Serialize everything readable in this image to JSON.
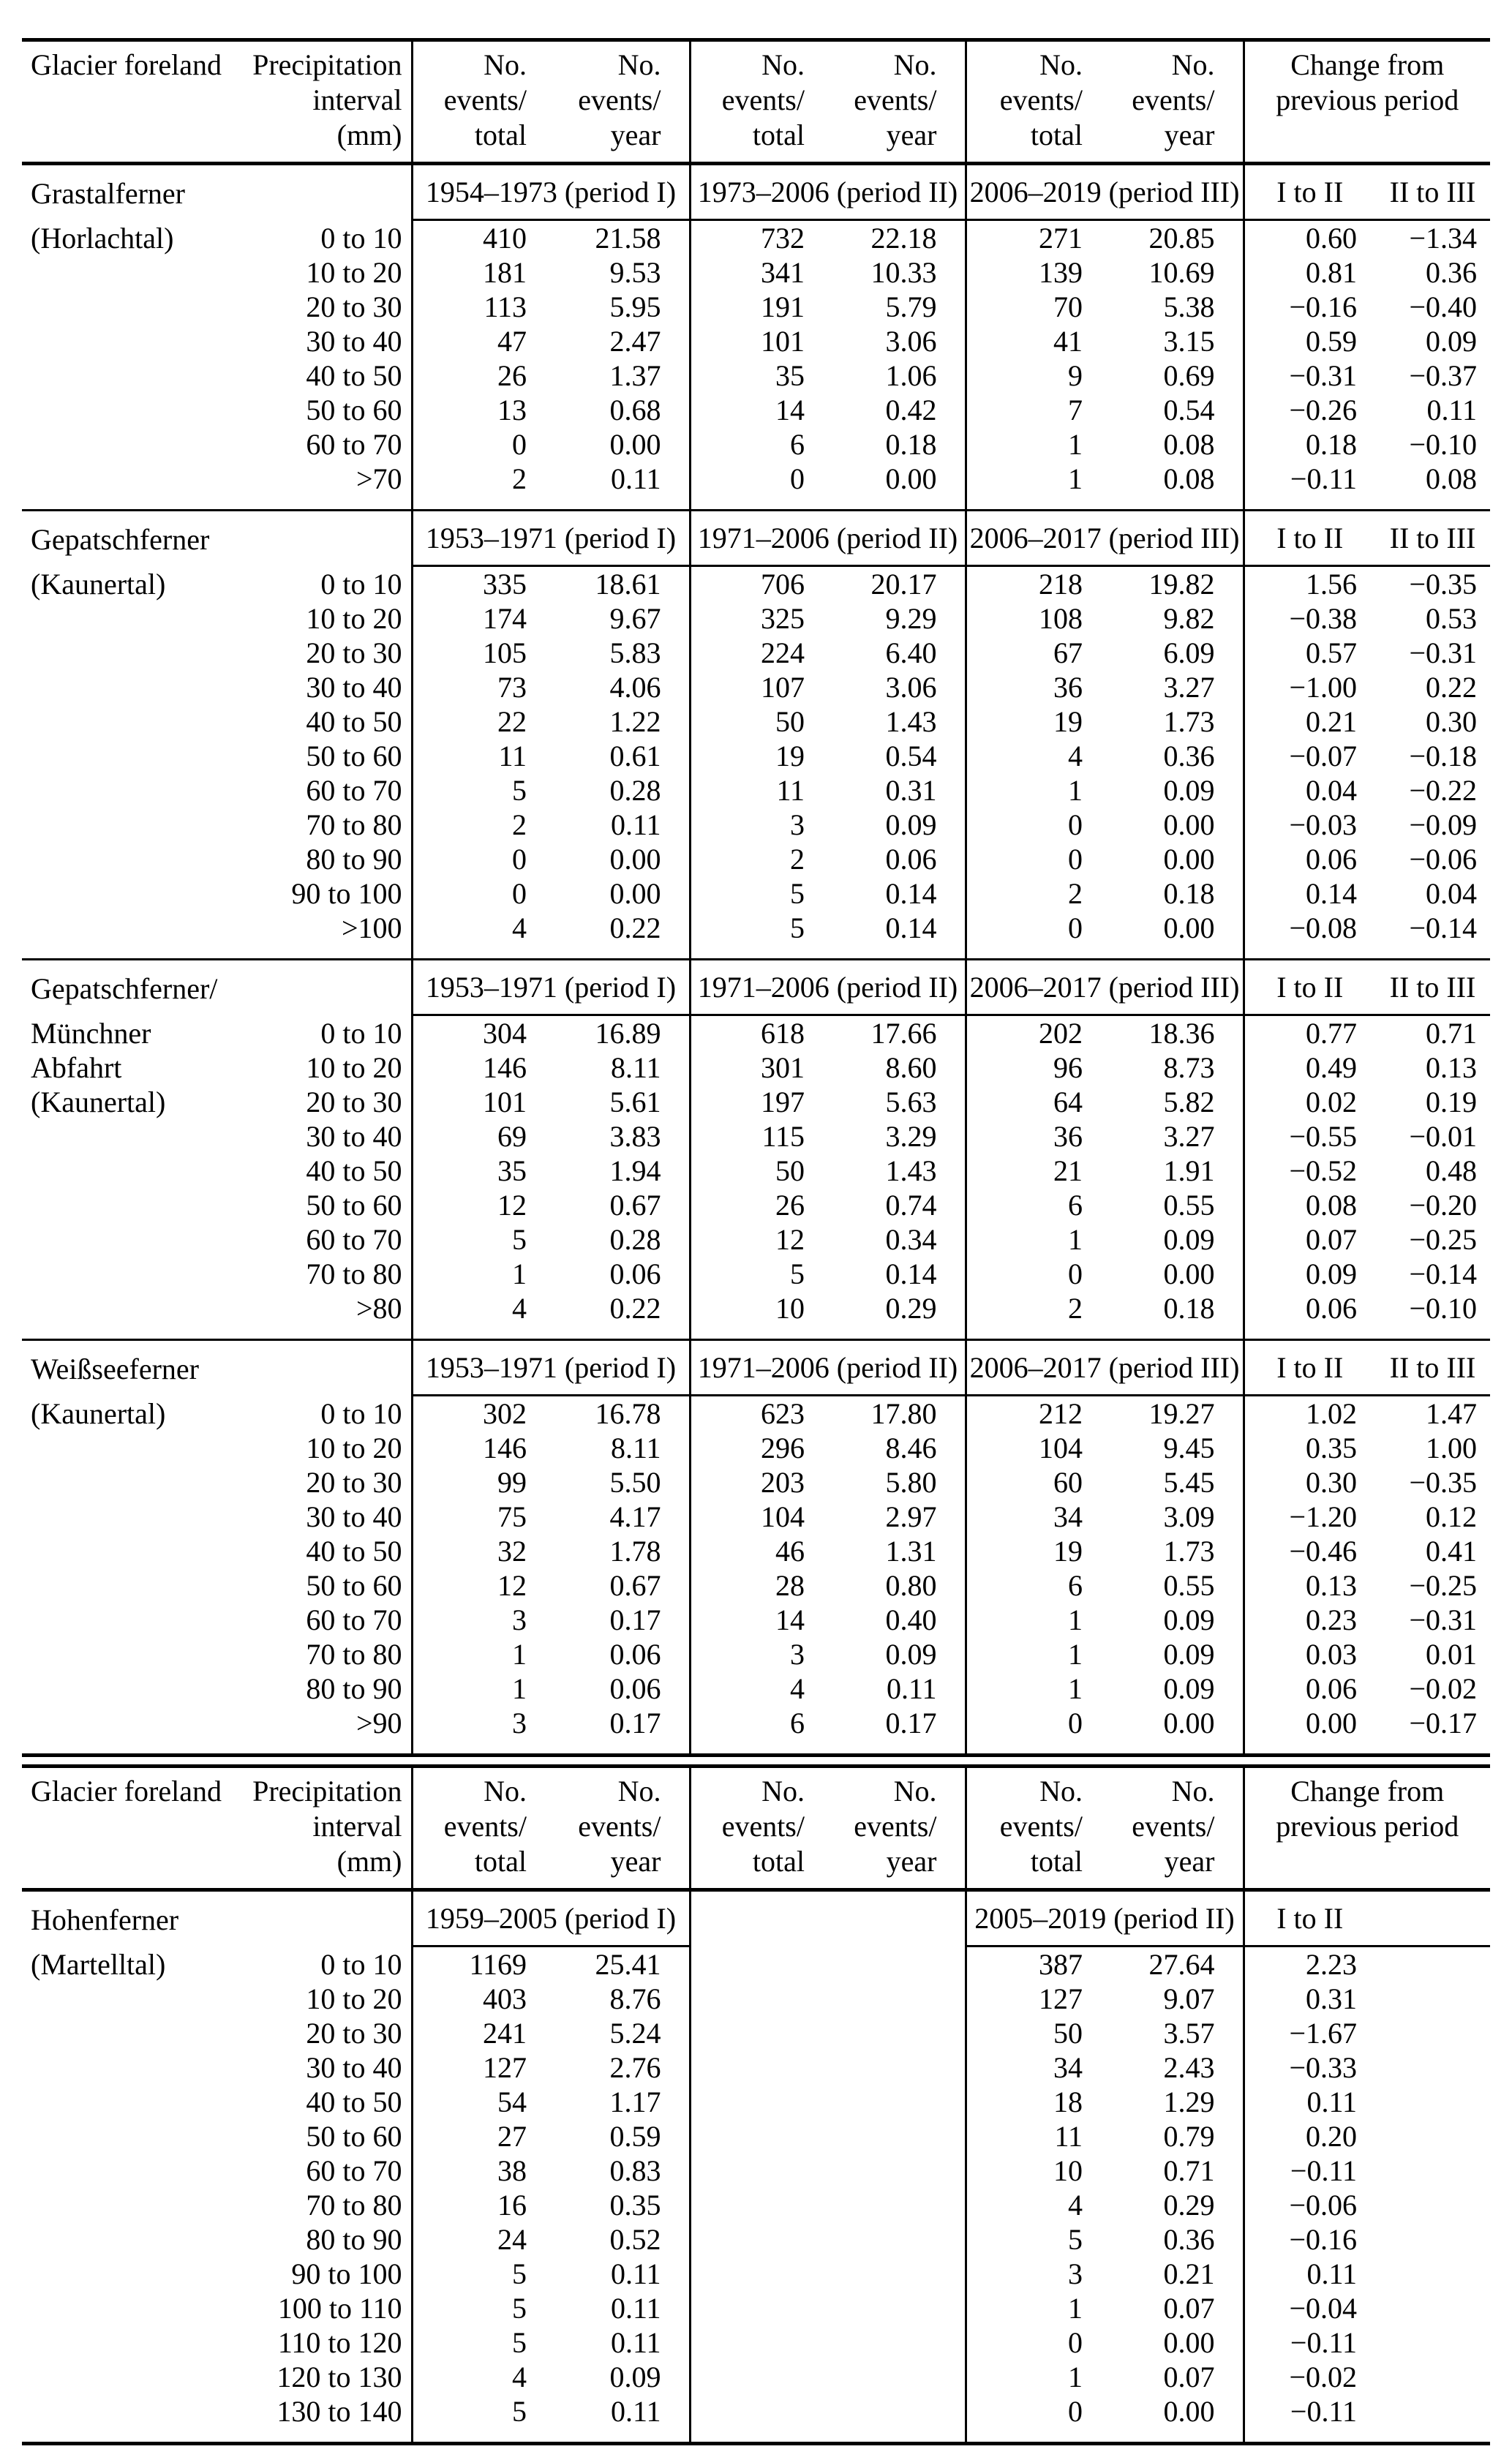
{
  "page": {
    "background": "#ffffff",
    "text_color": "#000000"
  },
  "column_headers": {
    "glacier": "Glacier foreland",
    "precipitation_lines": [
      "Precipitation",
      "interval",
      "(mm)"
    ],
    "events_total_lines": [
      "No.",
      "events/",
      "total"
    ],
    "events_year_lines": [
      "No.",
      "events/",
      "year"
    ],
    "change_lines": [
      "Change from",
      "previous period"
    ]
  },
  "tables": [
    {
      "id": "upper-table",
      "sections": [
        {
          "name": "Grastalferner",
          "sub_labels": [
            "(Horlachtal)"
          ],
          "period_labels": [
            "1954–1973 (period I)",
            "1973–2006 (period II)",
            "2006–2019 (period III)"
          ],
          "change_labels": [
            "I to II",
            "II to III"
          ],
          "rows": [
            {
              "interval": "0 to 10",
              "values": [
                "410",
                "21.58",
                "732",
                "22.18",
                "271",
                "20.85",
                "0.60",
                "−1.34"
              ]
            },
            {
              "interval": "10 to 20",
              "values": [
                "181",
                "9.53",
                "341",
                "10.33",
                "139",
                "10.69",
                "0.81",
                "0.36"
              ]
            },
            {
              "interval": "20 to 30",
              "values": [
                "113",
                "5.95",
                "191",
                "5.79",
                "70",
                "5.38",
                "−0.16",
                "−0.40"
              ]
            },
            {
              "interval": "30 to 40",
              "values": [
                "47",
                "2.47",
                "101",
                "3.06",
                "41",
                "3.15",
                "0.59",
                "0.09"
              ]
            },
            {
              "interval": "40 to 50",
              "values": [
                "26",
                "1.37",
                "35",
                "1.06",
                "9",
                "0.69",
                "−0.31",
                "−0.37"
              ]
            },
            {
              "interval": "50 to 60",
              "values": [
                "13",
                "0.68",
                "14",
                "0.42",
                "7",
                "0.54",
                "−0.26",
                "0.11"
              ]
            },
            {
              "interval": "60 to 70",
              "values": [
                "0",
                "0.00",
                "6",
                "0.18",
                "1",
                "0.08",
                "0.18",
                "−0.10"
              ]
            },
            {
              "interval": ">70",
              "values": [
                "2",
                "0.11",
                "0",
                "0.00",
                "1",
                "0.08",
                "−0.11",
                "0.08"
              ]
            }
          ]
        },
        {
          "name": "Gepatschferner",
          "sub_labels": [
            "(Kaunertal)"
          ],
          "period_labels": [
            "1953–1971 (period I)",
            "1971–2006 (period II)",
            "2006–2017 (period III)"
          ],
          "change_labels": [
            "I to II",
            "II to III"
          ],
          "rows": [
            {
              "interval": "0 to 10",
              "values": [
                "335",
                "18.61",
                "706",
                "20.17",
                "218",
                "19.82",
                "1.56",
                "−0.35"
              ]
            },
            {
              "interval": "10 to 20",
              "values": [
                "174",
                "9.67",
                "325",
                "9.29",
                "108",
                "9.82",
                "−0.38",
                "0.53"
              ]
            },
            {
              "interval": "20 to 30",
              "values": [
                "105",
                "5.83",
                "224",
                "6.40",
                "67",
                "6.09",
                "0.57",
                "−0.31"
              ]
            },
            {
              "interval": "30 to 40",
              "values": [
                "73",
                "4.06",
                "107",
                "3.06",
                "36",
                "3.27",
                "−1.00",
                "0.22"
              ]
            },
            {
              "interval": "40 to 50",
              "values": [
                "22",
                "1.22",
                "50",
                "1.43",
                "19",
                "1.73",
                "0.21",
                "0.30"
              ]
            },
            {
              "interval": "50 to 60",
              "values": [
                "11",
                "0.61",
                "19",
                "0.54",
                "4",
                "0.36",
                "−0.07",
                "−0.18"
              ]
            },
            {
              "interval": "60 to 70",
              "values": [
                "5",
                "0.28",
                "11",
                "0.31",
                "1",
                "0.09",
                "0.04",
                "−0.22"
              ]
            },
            {
              "interval": "70 to 80",
              "values": [
                "2",
                "0.11",
                "3",
                "0.09",
                "0",
                "0.00",
                "−0.03",
                "−0.09"
              ]
            },
            {
              "interval": "80 to 90",
              "values": [
                "0",
                "0.00",
                "2",
                "0.06",
                "0",
                "0.00",
                "0.06",
                "−0.06"
              ]
            },
            {
              "interval": "90 to 100",
              "values": [
                "0",
                "0.00",
                "5",
                "0.14",
                "2",
                "0.18",
                "0.14",
                "0.04"
              ]
            },
            {
              "interval": ">100",
              "values": [
                "4",
                "0.22",
                "5",
                "0.14",
                "0",
                "0.00",
                "−0.08",
                "−0.14"
              ]
            }
          ]
        },
        {
          "name": "Gepatschferner/",
          "sub_labels": [
            "Münchner",
            "Abfahrt",
            "(Kaunertal)"
          ],
          "period_labels": [
            "1953–1971 (period I)",
            "1971–2006 (period II)",
            "2006–2017 (period III)"
          ],
          "change_labels": [
            "I to II",
            "II to III"
          ],
          "rows": [
            {
              "interval": "0 to 10",
              "values": [
                "304",
                "16.89",
                "618",
                "17.66",
                "202",
                "18.36",
                "0.77",
                "0.71"
              ]
            },
            {
              "interval": "10 to 20",
              "values": [
                "146",
                "8.11",
                "301",
                "8.60",
                "96",
                "8.73",
                "0.49",
                "0.13"
              ]
            },
            {
              "interval": "20 to 30",
              "values": [
                "101",
                "5.61",
                "197",
                "5.63",
                "64",
                "5.82",
                "0.02",
                "0.19"
              ]
            },
            {
              "interval": "30 to 40",
              "values": [
                "69",
                "3.83",
                "115",
                "3.29",
                "36",
                "3.27",
                "−0.55",
                "−0.01"
              ]
            },
            {
              "interval": "40 to 50",
              "values": [
                "35",
                "1.94",
                "50",
                "1.43",
                "21",
                "1.91",
                "−0.52",
                "0.48"
              ]
            },
            {
              "interval": "50 to 60",
              "values": [
                "12",
                "0.67",
                "26",
                "0.74",
                "6",
                "0.55",
                "0.08",
                "−0.20"
              ]
            },
            {
              "interval": "60 to 70",
              "values": [
                "5",
                "0.28",
                "12",
                "0.34",
                "1",
                "0.09",
                "0.07",
                "−0.25"
              ]
            },
            {
              "interval": "70 to 80",
              "values": [
                "1",
                "0.06",
                "5",
                "0.14",
                "0",
                "0.00",
                "0.09",
                "−0.14"
              ]
            },
            {
              "interval": ">80",
              "values": [
                "4",
                "0.22",
                "10",
                "0.29",
                "2",
                "0.18",
                "0.06",
                "−0.10"
              ]
            }
          ]
        },
        {
          "name": "Weißseeferner",
          "sub_labels": [
            "(Kaunertal)"
          ],
          "period_labels": [
            "1953–1971 (period I)",
            "1971–2006 (period II)",
            "2006–2017 (period III)"
          ],
          "change_labels": [
            "I to II",
            "II to III"
          ],
          "rows": [
            {
              "interval": "0 to 10",
              "values": [
                "302",
                "16.78",
                "623",
                "17.80",
                "212",
                "19.27",
                "1.02",
                "1.47"
              ]
            },
            {
              "interval": "10 to 20",
              "values": [
                "146",
                "8.11",
                "296",
                "8.46",
                "104",
                "9.45",
                "0.35",
                "1.00"
              ]
            },
            {
              "interval": "20 to 30",
              "values": [
                "99",
                "5.50",
                "203",
                "5.80",
                "60",
                "5.45",
                "0.30",
                "−0.35"
              ]
            },
            {
              "interval": "30 to 40",
              "values": [
                "75",
                "4.17",
                "104",
                "2.97",
                "34",
                "3.09",
                "−1.20",
                "0.12"
              ]
            },
            {
              "interval": "40 to 50",
              "values": [
                "32",
                "1.78",
                "46",
                "1.31",
                "19",
                "1.73",
                "−0.46",
                "0.41"
              ]
            },
            {
              "interval": "50 to 60",
              "values": [
                "12",
                "0.67",
                "28",
                "0.80",
                "6",
                "0.55",
                "0.13",
                "−0.25"
              ]
            },
            {
              "interval": "60 to 70",
              "values": [
                "3",
                "0.17",
                "14",
                "0.40",
                "1",
                "0.09",
                "0.23",
                "−0.31"
              ]
            },
            {
              "interval": "70 to 80",
              "values": [
                "1",
                "0.06",
                "3",
                "0.09",
                "1",
                "0.09",
                "0.03",
                "0.01"
              ]
            },
            {
              "interval": "80 to 90",
              "values": [
                "1",
                "0.06",
                "4",
                "0.11",
                "1",
                "0.09",
                "0.06",
                "−0.02"
              ]
            },
            {
              "interval": ">90",
              "values": [
                "3",
                "0.17",
                "6",
                "0.17",
                "0",
                "0.00",
                "0.00",
                "−0.17"
              ]
            }
          ]
        }
      ]
    },
    {
      "id": "lower-table",
      "sections": [
        {
          "name": "Hohenferner",
          "sub_labels": [
            "(Martelltal)"
          ],
          "period_labels": [
            "1959–2005 (period I)",
            "",
            "2005–2019 (period II)"
          ],
          "change_labels": [
            "I to II",
            ""
          ],
          "rows": [
            {
              "interval": "0 to 10",
              "values": [
                "1169",
                "25.41",
                "",
                "",
                "387",
                "27.64",
                "2.23",
                ""
              ]
            },
            {
              "interval": "10 to 20",
              "values": [
                "403",
                "8.76",
                "",
                "",
                "127",
                "9.07",
                "0.31",
                ""
              ]
            },
            {
              "interval": "20 to 30",
              "values": [
                "241",
                "5.24",
                "",
                "",
                "50",
                "3.57",
                "−1.67",
                ""
              ]
            },
            {
              "interval": "30 to 40",
              "values": [
                "127",
                "2.76",
                "",
                "",
                "34",
                "2.43",
                "−0.33",
                ""
              ]
            },
            {
              "interval": "40 to 50",
              "values": [
                "54",
                "1.17",
                "",
                "",
                "18",
                "1.29",
                "0.11",
                ""
              ]
            },
            {
              "interval": "50 to 60",
              "values": [
                "27",
                "0.59",
                "",
                "",
                "11",
                "0.79",
                "0.20",
                ""
              ]
            },
            {
              "interval": "60 to 70",
              "values": [
                "38",
                "0.83",
                "",
                "",
                "10",
                "0.71",
                "−0.11",
                ""
              ]
            },
            {
              "interval": "70 to 80",
              "values": [
                "16",
                "0.35",
                "",
                "",
                "4",
                "0.29",
                "−0.06",
                ""
              ]
            },
            {
              "interval": "80 to 90",
              "values": [
                "24",
                "0.52",
                "",
                "",
                "5",
                "0.36",
                "−0.16",
                ""
              ]
            },
            {
              "interval": "90 to 100",
              "values": [
                "5",
                "0.11",
                "",
                "",
                "3",
                "0.21",
                "0.11",
                ""
              ]
            },
            {
              "interval": "100 to 110",
              "values": [
                "5",
                "0.11",
                "",
                "",
                "1",
                "0.07",
                "−0.04",
                ""
              ]
            },
            {
              "interval": "110 to 120",
              "values": [
                "5",
                "0.11",
                "",
                "",
                "0",
                "0.00",
                "−0.11",
                ""
              ]
            },
            {
              "interval": "120 to 130",
              "values": [
                "4",
                "0.09",
                "",
                "",
                "1",
                "0.07",
                "−0.02",
                ""
              ]
            },
            {
              "interval": "130 to 140",
              "values": [
                "5",
                "0.11",
                "",
                "",
                "0",
                "0.00",
                "−0.11",
                ""
              ]
            }
          ]
        }
      ]
    }
  ]
}
